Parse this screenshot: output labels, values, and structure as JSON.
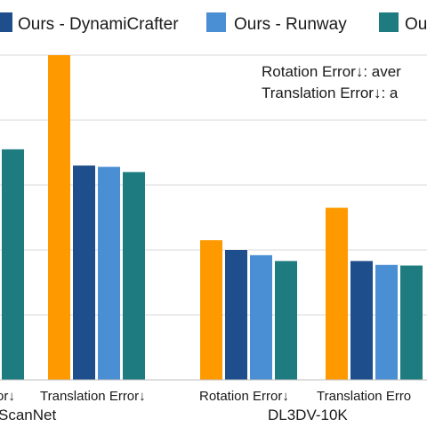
{
  "chart_data": {
    "type": "bar",
    "legend": [
      {
        "name": "Ours - DynamiCrafter",
        "color": "#1f4e8c"
      },
      {
        "name": "Ours - Runway",
        "color": "#4a8fd4"
      },
      {
        "name": "Ou",
        "color": "#1e7b80"
      }
    ],
    "annotations": [
      "Rotation Error↓: aver",
      "Translation Error↓: a"
    ],
    "categories": [
      {
        "label": "or↓",
        "group": "ScanNet"
      },
      {
        "label": "Translation Error↓",
        "group": "ScanNet"
      },
      {
        "label": "Rotation Error↓",
        "group": "DL3DV-10K"
      },
      {
        "label": "Translation Erro",
        "group": "DL3DV-10K"
      }
    ],
    "group_labels": [
      "ScanNet",
      "DL3DV-10K"
    ],
    "series": [
      {
        "color": "#ff9900",
        "values": [
          null,
          5.0,
          2.15,
          2.65
        ]
      },
      {
        "color": "#1f4e8c",
        "values": [
          null,
          3.3,
          2.0,
          1.83
        ]
      },
      {
        "color": "#4a8fd4",
        "values": [
          null,
          3.28,
          1.92,
          1.77
        ]
      },
      {
        "color": "#1e7b80",
        "values": [
          3.55,
          3.2,
          1.83,
          1.76
        ]
      }
    ],
    "ylim": [
      0,
      5.0
    ],
    "grid": true
  }
}
